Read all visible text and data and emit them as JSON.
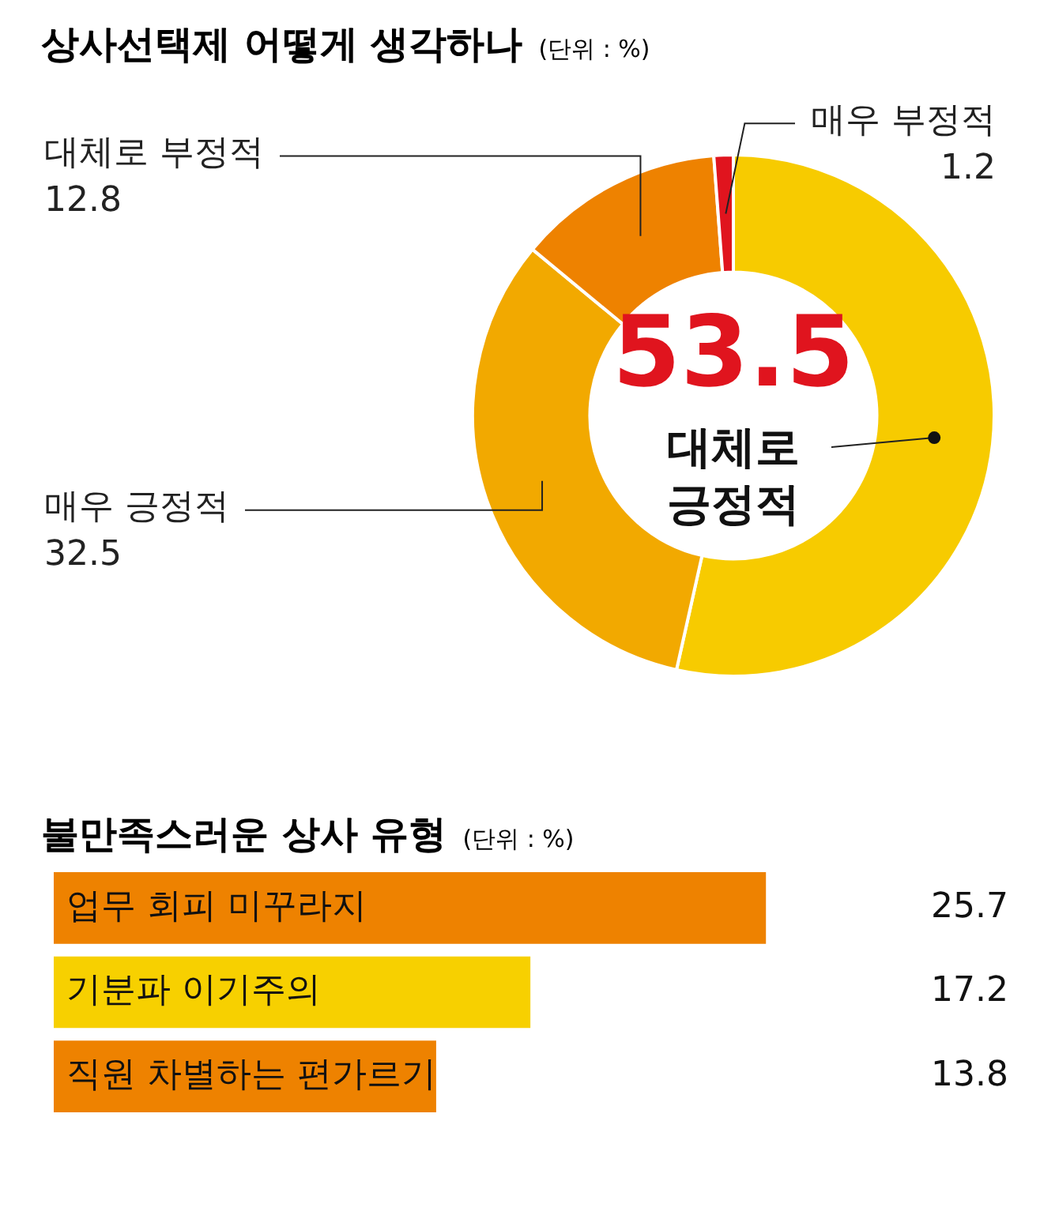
{
  "chart_data": [
    {
      "type": "donut",
      "title": "상사선택제 어떻게 생각하나",
      "subtitle": "(단위 : %)",
      "categories": [
        "대체로 긍정적",
        "매우 긍정적",
        "대체로 부정적",
        "매우 부정적"
      ],
      "values": [
        53.5,
        32.5,
        12.8,
        1.2
      ],
      "colors": [
        "#f7cb00",
        "#f2a900",
        "#ee8200",
        "#e0141e"
      ],
      "data_labels": true
    },
    {
      "type": "bar",
      "orientation": "horizontal",
      "title": "불만족스러운 상사 유형",
      "subtitle": "(단위 : %)",
      "categories": [
        "업무 회피 미꾸라지",
        "기분파 이기주의",
        "직원 차별하는 편가르기"
      ],
      "values": [
        25.7,
        17.2,
        13.8
      ],
      "colors": [
        "#ee8200",
        "#f7d000",
        "#ee8200"
      ],
      "data_labels": true
    }
  ]
}
